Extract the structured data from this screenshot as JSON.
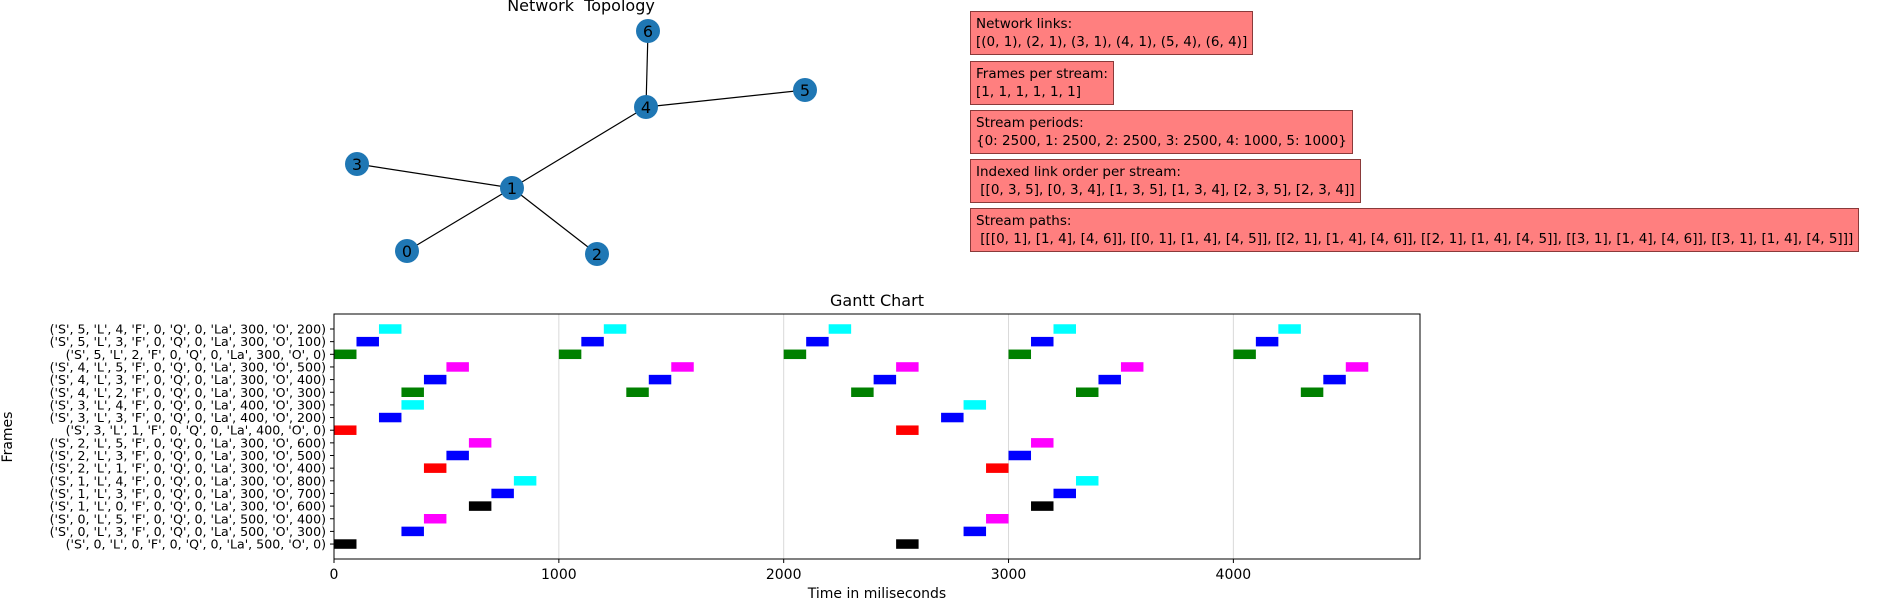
{
  "network": {
    "title": "Network  Topology",
    "nodes": [
      "0",
      "1",
      "2",
      "3",
      "4",
      "5",
      "6"
    ],
    "edges": [
      [
        0,
        1
      ],
      [
        2,
        1
      ],
      [
        3,
        1
      ],
      [
        4,
        1
      ],
      [
        5,
        4
      ],
      [
        6,
        4
      ]
    ],
    "node_color": "#1f77b4"
  },
  "info_boxes": [
    {
      "label": "Network links:",
      "value": "[(0, 1), (2, 1), (3, 1), (4, 1), (5, 4), (6, 4)]"
    },
    {
      "label": "Frames per stream:",
      "value": "[1, 1, 1, 1, 1, 1]"
    },
    {
      "label": "Stream periods:",
      "value": "{0: 2500, 1: 2500, 2: 2500, 3: 2500, 4: 1000, 5: 1000}"
    },
    {
      "label": "Indexed link order per stream:",
      "value": " [[0, 3, 5], [0, 3, 4], [1, 3, 5], [1, 3, 4], [2, 3, 5], [2, 3, 4]]"
    },
    {
      "label": "Stream paths:",
      "value": " [[[0, 1], [1, 4], [4, 6]], [[0, 1], [1, 4], [4, 5]], [[2, 1], [1, 4], [4, 6]], [[2, 1], [1, 4], [4, 5]], [[3, 1], [1, 4], [4, 6]], [[3, 1], [1, 4], [4, 5]]]"
    }
  ],
  "info_box_color": "#ff7f7f",
  "chart_data": {
    "type": "gantt",
    "title": "Gantt Chart",
    "xlabel": "Time in miliseconds",
    "ylabel": "Frames",
    "xlim": [
      0,
      4830
    ],
    "xticks": [
      0,
      1000,
      2000,
      3000,
      4000
    ],
    "grid": "vertical",
    "bar_duration": 100,
    "categories": [
      "('S', 5, 'L', 4, 'F', 0, 'Q', 0, 'La', 300, 'O', 200)",
      "('S', 5, 'L', 3, 'F', 0, 'Q', 0, 'La', 300, 'O', 100)",
      "('S', 5, 'L', 2, 'F', 0, 'Q', 0, 'La', 300, 'O', 0)",
      "('S', 4, 'L', 5, 'F', 0, 'Q', 0, 'La', 300, 'O', 500)",
      "('S', 4, 'L', 3, 'F', 0, 'Q', 0, 'La', 300, 'O', 400)",
      "('S', 4, 'L', 2, 'F', 0, 'Q', 0, 'La', 300, 'O', 300)",
      "('S', 3, 'L', 4, 'F', 0, 'Q', 0, 'La', 400, 'O', 300)",
      "('S', 3, 'L', 3, 'F', 0, 'Q', 0, 'La', 400, 'O', 200)",
      "('S', 3, 'L', 1, 'F', 0, 'Q', 0, 'La', 400, 'O', 0)",
      "('S', 2, 'L', 5, 'F', 0, 'Q', 0, 'La', 300, 'O', 600)",
      "('S', 2, 'L', 3, 'F', 0, 'Q', 0, 'La', 300, 'O', 500)",
      "('S', 2, 'L', 1, 'F', 0, 'Q', 0, 'La', 300, 'O', 400)",
      "('S', 1, 'L', 4, 'F', 0, 'Q', 0, 'La', 300, 'O', 800)",
      "('S', 1, 'L', 3, 'F', 0, 'Q', 0, 'La', 300, 'O', 700)",
      "('S', 1, 'L', 0, 'F', 0, 'Q', 0, 'La', 300, 'O', 600)",
      "('S', 0, 'L', 5, 'F', 0, 'Q', 0, 'La', 500, 'O', 400)",
      "('S', 0, 'L', 3, 'F', 0, 'Q', 0, 'La', 500, 'O', 300)",
      "('S', 0, 'L', 0, 'F', 0, 'Q', 0, 'La', 500, 'O', 0)"
    ],
    "link_colors": {
      "0": "#000000",
      "1": "#ff0000",
      "2": "#008000",
      "3": "#0000ff",
      "4": "#00ffff",
      "5": "#ff00ff"
    },
    "rows": [
      {
        "link": 4,
        "starts": [
          200,
          1200,
          2200,
          3200,
          4200
        ]
      },
      {
        "link": 3,
        "starts": [
          100,
          1100,
          2100,
          3100,
          4100
        ]
      },
      {
        "link": 2,
        "starts": [
          0,
          1000,
          2000,
          3000,
          4000
        ]
      },
      {
        "link": 5,
        "starts": [
          500,
          1500,
          2500,
          3500,
          4500
        ]
      },
      {
        "link": 3,
        "starts": [
          400,
          1400,
          2400,
          3400,
          4400
        ]
      },
      {
        "link": 2,
        "starts": [
          300,
          1300,
          2300,
          3300,
          4300
        ]
      },
      {
        "link": 4,
        "starts": [
          300,
          2800
        ]
      },
      {
        "link": 3,
        "starts": [
          200,
          2700
        ]
      },
      {
        "link": 1,
        "starts": [
          0,
          2500
        ]
      },
      {
        "link": 5,
        "starts": [
          600,
          3100
        ]
      },
      {
        "link": 3,
        "starts": [
          500,
          3000
        ]
      },
      {
        "link": 1,
        "starts": [
          400,
          2900
        ]
      },
      {
        "link": 4,
        "starts": [
          800,
          3300
        ]
      },
      {
        "link": 3,
        "starts": [
          700,
          3200
        ]
      },
      {
        "link": 0,
        "starts": [
          600,
          3100
        ]
      },
      {
        "link": 5,
        "starts": [
          400,
          2900
        ]
      },
      {
        "link": 3,
        "starts": [
          300,
          2800
        ]
      },
      {
        "link": 0,
        "starts": [
          0,
          2500
        ]
      }
    ]
  }
}
